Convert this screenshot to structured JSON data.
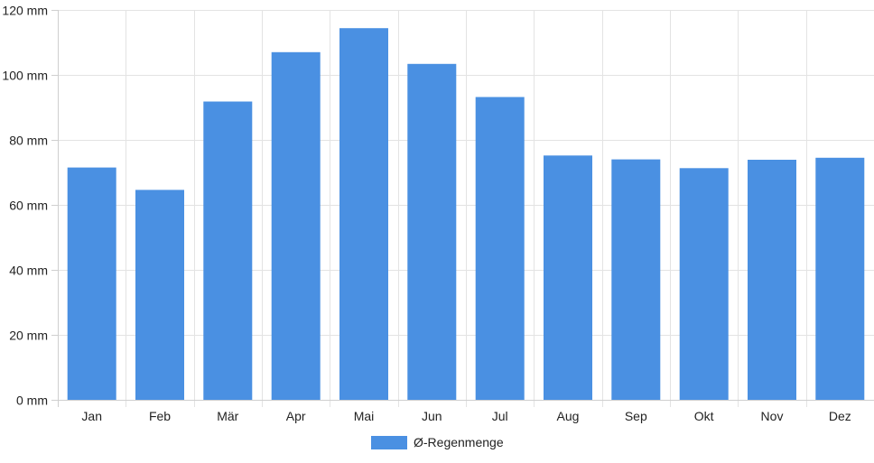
{
  "chart_data": {
    "type": "bar",
    "categories": [
      "Jan",
      "Feb",
      "Mär",
      "Apr",
      "Mai",
      "Jun",
      "Jul",
      "Aug",
      "Sep",
      "Okt",
      "Nov",
      "Dez"
    ],
    "series": [
      {
        "name": "Ø-Regenmenge",
        "values": [
          71.5,
          64.6,
          91.8,
          107.0,
          114.4,
          103.4,
          93.2,
          75.2,
          74.0,
          71.3,
          73.9,
          74.5
        ],
        "color": "#4a90e2"
      }
    ],
    "ylim": [
      0,
      120
    ],
    "yticks": [
      "0 mm",
      "20 mm",
      "40 mm",
      "60 mm",
      "80 mm",
      "100 mm",
      "120 mm"
    ],
    "ytick_values": [
      0,
      20,
      40,
      60,
      80,
      100,
      120
    ],
    "unit": "mm",
    "grid": true,
    "legend_position": "bottom-center"
  }
}
